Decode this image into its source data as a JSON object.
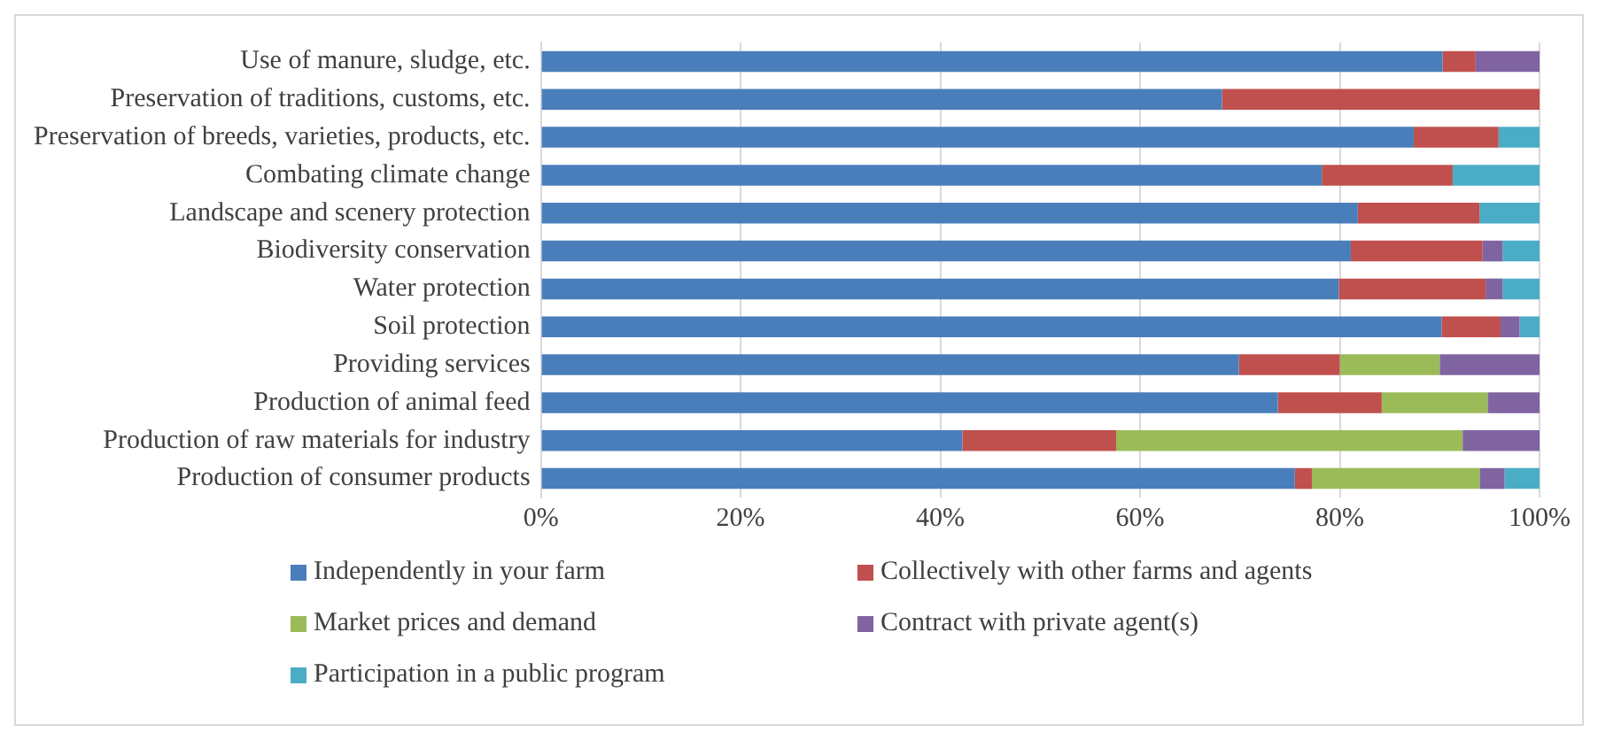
{
  "chart_data": {
    "type": "bar",
    "orientation": "horizontal",
    "stacked": true,
    "grid": "x",
    "legend": "bottom",
    "categories": [
      "Use of manure, sludge, etc.",
      "Preservation of traditions, customs, etc.",
      "Preservation of breeds, varieties, products, etc.",
      "Combating climate change",
      "Landscape and scenery protection",
      "Biodiversity conservation",
      "Water protection",
      "Soil protection",
      "Providing services",
      "Production of animal feed",
      "Production of raw materials for industry",
      "Production of consumer products"
    ],
    "xlim": [
      0,
      100
    ],
    "xticks": [
      {
        "value": 0,
        "label": "0%"
      },
      {
        "value": 20,
        "label": "20%"
      },
      {
        "value": 40,
        "label": "40%"
      },
      {
        "value": 60,
        "label": "60%"
      },
      {
        "value": 80,
        "label": "80%"
      },
      {
        "value": 100,
        "label": "100%"
      }
    ],
    "series": [
      {
        "name": "Independently in your farm",
        "color": "#4a7ebb",
        "values": [
          90.3,
          68.2,
          87.4,
          78.2,
          81.8,
          81.1,
          79.9,
          90.2,
          69.9,
          73.8,
          42.2,
          75.5
        ]
      },
      {
        "name": "Collectively with other farms and agents",
        "color": "#c0504d",
        "values": [
          3.3,
          31.8,
          8.5,
          13.1,
          12.2,
          13.2,
          14.7,
          5.9,
          10.1,
          10.4,
          15.4,
          1.7
        ]
      },
      {
        "name": "Market prices and demand",
        "color": "#9bbb59",
        "values": [
          0,
          0,
          0,
          0,
          0,
          0,
          0,
          0,
          10.0,
          10.6,
          34.7,
          16.8
        ]
      },
      {
        "name": "Contract with private agent(s)",
        "color": "#8064a2",
        "values": [
          6.4,
          0,
          0,
          0,
          0,
          2.0,
          1.7,
          1.9,
          10.0,
          5.2,
          7.7,
          2.5
        ]
      },
      {
        "name": "Participation in a public program",
        "color": "#4bacc6",
        "values": [
          0,
          0,
          4.1,
          8.7,
          6.0,
          3.7,
          3.7,
          2.0,
          0,
          0,
          0,
          3.5
        ]
      }
    ]
  }
}
